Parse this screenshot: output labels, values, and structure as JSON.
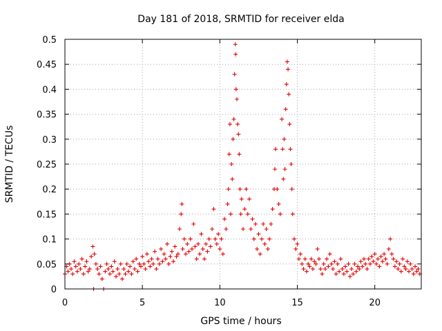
{
  "chart_data": {
    "type": "scatter",
    "title": "Day 181 of 2018, SRMTID for receiver elda",
    "xlabel": "GPS time / hours",
    "ylabel": "SRMTID / TECUs",
    "xlim": [
      0,
      23
    ],
    "ylim": [
      0,
      0.5
    ],
    "xticks": [
      0,
      5,
      10,
      15,
      20
    ],
    "yticks": [
      0,
      0.05,
      0.1,
      0.15,
      0.2,
      0.25,
      0.3,
      0.35,
      0.4,
      0.45,
      0.5
    ],
    "xtick_labels": [
      "0",
      "5",
      "10",
      "15",
      "20"
    ],
    "ytick_labels": [
      "0",
      "0.05",
      "0.1",
      "0.15",
      "0.2",
      "0.25",
      "0.3",
      "0.35",
      "0.4",
      "0.45",
      "0.5"
    ],
    "grid": true,
    "marker": "+",
    "color": "#e00000",
    "series": [
      {
        "name": "SRMTID",
        "points": [
          [
            0.0,
            0.03
          ],
          [
            0.1,
            0.045
          ],
          [
            0.2,
            0.035
          ],
          [
            0.3,
            0.05
          ],
          [
            0.4,
            0.04
          ],
          [
            0.5,
            0.03
          ],
          [
            0.6,
            0.055
          ],
          [
            0.7,
            0.045
          ],
          [
            0.8,
            0.035
          ],
          [
            0.9,
            0.05
          ],
          [
            1.0,
            0.04
          ],
          [
            1.1,
            0.06
          ],
          [
            1.2,
            0.03
          ],
          [
            1.3,
            0.045
          ],
          [
            1.4,
            0.055
          ],
          [
            1.5,
            0.035
          ],
          [
            1.6,
            0.04
          ],
          [
            1.7,
            0.065
          ],
          [
            1.8,
            0.085
          ],
          [
            1.85,
            0.0
          ],
          [
            1.9,
            0.07
          ],
          [
            2.0,
            0.05
          ],
          [
            2.1,
            0.04
          ],
          [
            2.2,
            0.03
          ],
          [
            2.3,
            0.045
          ],
          [
            2.4,
            0.02
          ],
          [
            2.5,
            0.0
          ],
          [
            2.6,
            0.035
          ],
          [
            2.7,
            0.05
          ],
          [
            2.8,
            0.04
          ],
          [
            2.9,
            0.03
          ],
          [
            3.0,
            0.045
          ],
          [
            3.1,
            0.035
          ],
          [
            3.2,
            0.055
          ],
          [
            3.3,
            0.025
          ],
          [
            3.4,
            0.04
          ],
          [
            3.5,
            0.03
          ],
          [
            3.6,
            0.05
          ],
          [
            3.7,
            0.02
          ],
          [
            3.8,
            0.04
          ],
          [
            3.9,
            0.03
          ],
          [
            4.0,
            0.05
          ],
          [
            4.1,
            0.035
          ],
          [
            4.2,
            0.045
          ],
          [
            4.3,
            0.03
          ],
          [
            4.4,
            0.055
          ],
          [
            4.5,
            0.04
          ],
          [
            4.6,
            0.06
          ],
          [
            4.7,
            0.035
          ],
          [
            4.8,
            0.05
          ],
          [
            4.9,
            0.045
          ],
          [
            5.0,
            0.065
          ],
          [
            5.1,
            0.05
          ],
          [
            5.2,
            0.04
          ],
          [
            5.3,
            0.07
          ],
          [
            5.4,
            0.055
          ],
          [
            5.5,
            0.045
          ],
          [
            5.6,
            0.06
          ],
          [
            5.7,
            0.05
          ],
          [
            5.8,
            0.075
          ],
          [
            5.9,
            0.04
          ],
          [
            6.0,
            0.06
          ],
          [
            6.1,
            0.05
          ],
          [
            6.2,
            0.08
          ],
          [
            6.3,
            0.055
          ],
          [
            6.4,
            0.07
          ],
          [
            6.5,
            0.06
          ],
          [
            6.6,
            0.09
          ],
          [
            6.7,
            0.05
          ],
          [
            6.8,
            0.065
          ],
          [
            6.9,
            0.075
          ],
          [
            7.0,
            0.055
          ],
          [
            7.1,
            0.085
          ],
          [
            7.2,
            0.065
          ],
          [
            7.3,
            0.07
          ],
          [
            7.4,
            0.12
          ],
          [
            7.5,
            0.15
          ],
          [
            7.55,
            0.17
          ],
          [
            7.6,
            0.08
          ],
          [
            7.7,
            0.1
          ],
          [
            7.8,
            0.07
          ],
          [
            7.9,
            0.09
          ],
          [
            8.0,
            0.075
          ],
          [
            8.1,
            0.1
          ],
          [
            8.2,
            0.08
          ],
          [
            8.3,
            0.13
          ],
          [
            8.4,
            0.085
          ],
          [
            8.5,
            0.06
          ],
          [
            8.6,
            0.09
          ],
          [
            8.7,
            0.07
          ],
          [
            8.8,
            0.11
          ],
          [
            8.9,
            0.08
          ],
          [
            9.0,
            0.06
          ],
          [
            9.1,
            0.09
          ],
          [
            9.2,
            0.075
          ],
          [
            9.3,
            0.1
          ],
          [
            9.4,
            0.085
          ],
          [
            9.5,
            0.12
          ],
          [
            9.6,
            0.16
          ],
          [
            9.7,
            0.1
          ],
          [
            9.8,
            0.09
          ],
          [
            9.9,
            0.11
          ],
          [
            10.0,
            0.08
          ],
          [
            10.1,
            0.1
          ],
          [
            10.2,
            0.07
          ],
          [
            10.3,
            0.14
          ],
          [
            10.4,
            0.12
          ],
          [
            10.5,
            0.17
          ],
          [
            10.55,
            0.2
          ],
          [
            10.6,
            0.27
          ],
          [
            10.65,
            0.33
          ],
          [
            10.7,
            0.15
          ],
          [
            10.75,
            0.25
          ],
          [
            10.8,
            0.22
          ],
          [
            10.85,
            0.3
          ],
          [
            10.9,
            0.34
          ],
          [
            10.95,
            0.43
          ],
          [
            11.0,
            0.49
          ],
          [
            11.02,
            0.47
          ],
          [
            11.05,
            0.4
          ],
          [
            11.1,
            0.38
          ],
          [
            11.15,
            0.33
          ],
          [
            11.2,
            0.31
          ],
          [
            11.25,
            0.27
          ],
          [
            11.3,
            0.2
          ],
          [
            11.35,
            0.15
          ],
          [
            11.4,
            0.18
          ],
          [
            11.5,
            0.12
          ],
          [
            11.6,
            0.16
          ],
          [
            11.7,
            0.2
          ],
          [
            11.8,
            0.15
          ],
          [
            11.9,
            0.18
          ],
          [
            12.0,
            0.12
          ],
          [
            12.1,
            0.14
          ],
          [
            12.2,
            0.1
          ],
          [
            12.3,
            0.13
          ],
          [
            12.4,
            0.08
          ],
          [
            12.5,
            0.11
          ],
          [
            12.6,
            0.07
          ],
          [
            12.7,
            0.1
          ],
          [
            12.8,
            0.13
          ],
          [
            12.9,
            0.09
          ],
          [
            13.0,
            0.12
          ],
          [
            13.1,
            0.08
          ],
          [
            13.2,
            0.1
          ],
          [
            13.3,
            0.13
          ],
          [
            13.4,
            0.16
          ],
          [
            13.5,
            0.2
          ],
          [
            13.55,
            0.24
          ],
          [
            13.6,
            0.28
          ],
          [
            13.7,
            0.2
          ],
          [
            13.8,
            0.17
          ],
          [
            13.9,
            0.15
          ],
          [
            14.0,
            0.34
          ],
          [
            14.05,
            0.28
          ],
          [
            14.1,
            0.22
          ],
          [
            14.15,
            0.3
          ],
          [
            14.2,
            0.24
          ],
          [
            14.25,
            0.36
          ],
          [
            14.3,
            0.41
          ],
          [
            14.35,
            0.455
          ],
          [
            14.4,
            0.44
          ],
          [
            14.45,
            0.39
          ],
          [
            14.5,
            0.33
          ],
          [
            14.55,
            0.28
          ],
          [
            14.6,
            0.25
          ],
          [
            14.65,
            0.2
          ],
          [
            14.7,
            0.15
          ],
          [
            14.8,
            0.1
          ],
          [
            14.9,
            0.08
          ],
          [
            15.0,
            0.09
          ],
          [
            15.1,
            0.06
          ],
          [
            15.2,
            0.07
          ],
          [
            15.3,
            0.05
          ],
          [
            15.4,
            0.04
          ],
          [
            15.5,
            0.06
          ],
          [
            15.6,
            0.035
          ],
          [
            15.7,
            0.05
          ],
          [
            15.8,
            0.045
          ],
          [
            15.9,
            0.06
          ],
          [
            16.0,
            0.04
          ],
          [
            16.1,
            0.055
          ],
          [
            16.2,
            0.05
          ],
          [
            16.3,
            0.08
          ],
          [
            16.4,
            0.06
          ],
          [
            16.5,
            0.04
          ],
          [
            16.6,
            0.03
          ],
          [
            16.7,
            0.05
          ],
          [
            16.8,
            0.04
          ],
          [
            16.9,
            0.06
          ],
          [
            17.0,
            0.045
          ],
          [
            17.1,
            0.07
          ],
          [
            17.2,
            0.05
          ],
          [
            17.3,
            0.04
          ],
          [
            17.4,
            0.055
          ],
          [
            17.5,
            0.03
          ],
          [
            17.6,
            0.05
          ],
          [
            17.7,
            0.035
          ],
          [
            17.8,
            0.06
          ],
          [
            17.9,
            0.04
          ],
          [
            18.0,
            0.03
          ],
          [
            18.1,
            0.045
          ],
          [
            18.2,
            0.035
          ],
          [
            18.3,
            0.05
          ],
          [
            18.4,
            0.025
          ],
          [
            18.5,
            0.04
          ],
          [
            18.6,
            0.03
          ],
          [
            18.7,
            0.05
          ],
          [
            18.8,
            0.035
          ],
          [
            18.9,
            0.045
          ],
          [
            19.0,
            0.04
          ],
          [
            19.1,
            0.055
          ],
          [
            19.2,
            0.045
          ],
          [
            19.3,
            0.06
          ],
          [
            19.4,
            0.05
          ],
          [
            19.5,
            0.04
          ],
          [
            19.6,
            0.06
          ],
          [
            19.7,
            0.05
          ],
          [
            19.8,
            0.065
          ],
          [
            19.9,
            0.055
          ],
          [
            20.0,
            0.07
          ],
          [
            20.1,
            0.05
          ],
          [
            20.2,
            0.06
          ],
          [
            20.3,
            0.045
          ],
          [
            20.4,
            0.065
          ],
          [
            20.5,
            0.055
          ],
          [
            20.6,
            0.07
          ],
          [
            20.7,
            0.06
          ],
          [
            20.8,
            0.05
          ],
          [
            20.9,
            0.08
          ],
          [
            21.0,
            0.1
          ],
          [
            21.1,
            0.07
          ],
          [
            21.2,
            0.06
          ],
          [
            21.3,
            0.045
          ],
          [
            21.4,
            0.055
          ],
          [
            21.5,
            0.04
          ],
          [
            21.6,
            0.05
          ],
          [
            21.7,
            0.035
          ],
          [
            21.8,
            0.06
          ],
          [
            21.9,
            0.045
          ],
          [
            22.0,
            0.04
          ],
          [
            22.1,
            0.055
          ],
          [
            22.2,
            0.035
          ],
          [
            22.3,
            0.05
          ],
          [
            22.4,
            0.04
          ],
          [
            22.5,
            0.03
          ],
          [
            22.6,
            0.045
          ],
          [
            22.7,
            0.035
          ],
          [
            22.8,
            0.04
          ],
          [
            22.9,
            0.03
          ]
        ]
      }
    ]
  }
}
